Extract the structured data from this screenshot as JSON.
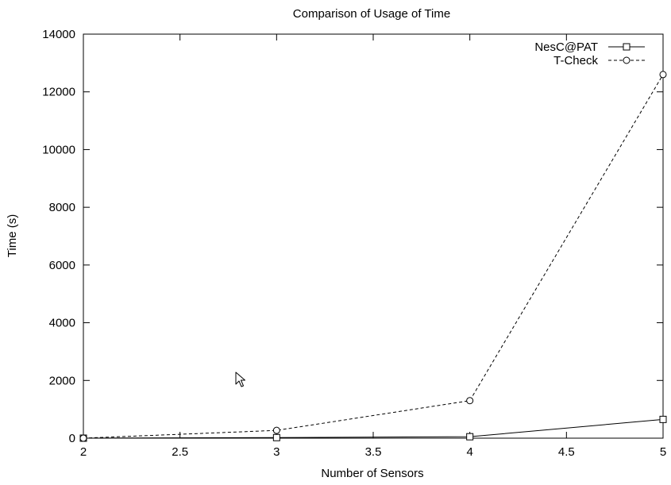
{
  "chart_data": {
    "type": "line",
    "title": "Comparison of Usage of Time",
    "xlabel": "Number of Sensors",
    "ylabel": "Time (s)",
    "xlim": [
      2,
      5
    ],
    "ylim": [
      0,
      14000
    ],
    "xticks": [
      2,
      2.5,
      3,
      3.5,
      4,
      4.5,
      5
    ],
    "xtick_labels": [
      "2",
      "2.5",
      "3",
      "3.5",
      "4",
      "4.5",
      "5"
    ],
    "yticks": [
      0,
      2000,
      4000,
      6000,
      8000,
      10000,
      12000,
      14000
    ],
    "ytick_labels": [
      "0",
      "2000",
      "4000",
      "6000",
      "8000",
      "10000",
      "12000",
      "14000"
    ],
    "grid": false,
    "legend_position": "top-right",
    "series": [
      {
        "name": "NesC@PAT",
        "line_style": "solid",
        "marker": "square",
        "color": "#000000",
        "x": [
          2,
          3,
          4,
          5
        ],
        "y": [
          0,
          20,
          50,
          650
        ]
      },
      {
        "name": "T-Check",
        "line_style": "dashed",
        "marker": "circle",
        "color": "#000000",
        "x": [
          2,
          3,
          4,
          5
        ],
        "y": [
          0,
          270,
          1300,
          12600
        ]
      }
    ]
  },
  "cursor": {
    "icon": "mouse-pointer-icon"
  }
}
